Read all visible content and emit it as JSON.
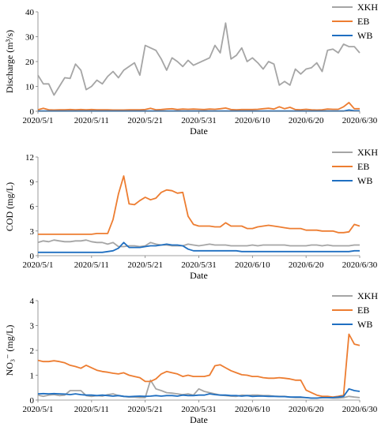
{
  "chart_data": [
    {
      "type": "line",
      "title": "",
      "xlabel": "Date",
      "ylabel": "Discharge (m³/s)",
      "ylim": [
        0,
        40
      ],
      "yticks": [
        0,
        10,
        20,
        30,
        40
      ],
      "xtick_labels": [
        "2020/5/1",
        "2020/5/11",
        "2020/5/21",
        "2020/5/31",
        "2020/6/10",
        "2020/6/20",
        "2020/6/30"
      ],
      "x_range": [
        "2020/5/1",
        "2020/6/30"
      ],
      "legend_position": "top-right",
      "grid": false,
      "series": [
        {
          "name": "XKH",
          "color": "#a5a5a5",
          "values": [
            14.5,
            11.0,
            11.0,
            6.5,
            10.0,
            13.5,
            13.2,
            19.0,
            16.5,
            8.7,
            10.0,
            12.5,
            11.0,
            14.0,
            16.0,
            13.5,
            16.5,
            18.0,
            19.5,
            14.5,
            26.5,
            25.5,
            24.5,
            21.0,
            16.5,
            21.5,
            20.0,
            18.0,
            20.5,
            18.5,
            19.5,
            20.5,
            21.5,
            26.5,
            23.5,
            35.5,
            21.0,
            22.5,
            25.5,
            20.0,
            21.5,
            19.5,
            17.0,
            20.0,
            19.0,
            10.5,
            12.0,
            10.5,
            17.0,
            15.0,
            17.0,
            17.5,
            19.5,
            16.0,
            24.5,
            25.0,
            23.5,
            27.0,
            26.0,
            26.0,
            23.5
          ]
        },
        {
          "name": "EB",
          "color": "#ed7d31",
          "values": [
            0.6,
            1.2,
            0.6,
            0.5,
            0.6,
            0.6,
            0.7,
            0.6,
            0.7,
            0.6,
            0.7,
            0.6,
            0.6,
            0.6,
            0.5,
            0.5,
            0.5,
            0.6,
            0.6,
            0.6,
            0.7,
            1.2,
            0.6,
            0.7,
            0.9,
            1.0,
            0.7,
            0.9,
            0.8,
            0.9,
            0.8,
            0.7,
            0.9,
            0.8,
            1.0,
            1.3,
            0.7,
            0.6,
            0.7,
            0.7,
            0.7,
            0.8,
            1.0,
            1.2,
            0.9,
            1.8,
            1.0,
            1.6,
            0.7,
            0.6,
            0.8,
            0.6,
            0.5,
            0.6,
            0.9,
            0.8,
            0.8,
            1.8,
            3.5,
            1.0,
            1.0
          ]
        },
        {
          "name": "WB",
          "color": "#1f6fc1",
          "values": [
            0.1,
            0.1,
            0.1,
            0.1,
            0.1,
            0.1,
            0.1,
            0.1,
            0.1,
            0.1,
            0.1,
            0.1,
            0.1,
            0.1,
            0.1,
            0.1,
            0.1,
            0.1,
            0.1,
            0.1,
            0.1,
            0.1,
            0.1,
            0.1,
            0.1,
            0.1,
            0.1,
            0.1,
            0.1,
            0.1,
            0.1,
            0.1,
            0.1,
            0.1,
            0.1,
            0.1,
            0.1,
            0.1,
            0.1,
            0.1,
            0.1,
            0.1,
            0.1,
            0.1,
            0.1,
            0.1,
            0.1,
            0.1,
            0.1,
            0.1,
            0.1,
            0.1,
            0.1,
            0.1,
            0.1,
            0.1,
            0.1,
            0.1,
            0.5,
            0.2,
            0.2
          ]
        }
      ]
    },
    {
      "type": "line",
      "title": "",
      "xlabel": "Date",
      "ylabel": "COD (mg/L)",
      "ylim": [
        0,
        12
      ],
      "yticks": [
        0,
        3,
        6,
        9,
        12
      ],
      "xtick_labels": [
        "2020/5/1",
        "2020/5/11",
        "2020/5/21",
        "2020/5/31",
        "2020/6/10",
        "2020/6/20",
        "2020/6/30"
      ],
      "x_range": [
        "2020/5/1",
        "2020/6/30"
      ],
      "legend_position": "top-right",
      "grid": false,
      "series": [
        {
          "name": "XKH",
          "color": "#a5a5a5",
          "values": [
            1.6,
            1.8,
            1.7,
            1.9,
            1.8,
            1.7,
            1.7,
            1.8,
            1.8,
            1.9,
            1.7,
            1.6,
            1.6,
            1.4,
            1.6,
            1.1,
            1.1,
            1.2,
            1.2,
            1.1,
            1.2,
            1.6,
            1.4,
            1.3,
            1.3,
            1.2,
            1.2,
            1.2,
            1.4,
            1.3,
            1.2,
            1.3,
            1.4,
            1.3,
            1.3,
            1.3,
            1.2,
            1.2,
            1.2,
            1.2,
            1.3,
            1.2,
            1.3,
            1.3,
            1.3,
            1.3,
            1.3,
            1.2,
            1.2,
            1.2,
            1.2,
            1.3,
            1.3,
            1.2,
            1.3,
            1.2,
            1.2,
            1.2,
            1.2,
            1.3,
            1.3
          ]
        },
        {
          "name": "EB",
          "color": "#ed7d31",
          "values": [
            2.6,
            2.6,
            2.6,
            2.6,
            2.6,
            2.6,
            2.6,
            2.6,
            2.6,
            2.6,
            2.6,
            2.7,
            2.7,
            2.7,
            4.4,
            7.5,
            9.7,
            6.3,
            6.2,
            6.7,
            7.1,
            6.8,
            7.0,
            7.7,
            8.0,
            7.9,
            7.6,
            7.7,
            4.8,
            3.8,
            3.6,
            3.6,
            3.6,
            3.5,
            3.5,
            4.0,
            3.6,
            3.6,
            3.6,
            3.3,
            3.3,
            3.5,
            3.6,
            3.7,
            3.6,
            3.5,
            3.4,
            3.3,
            3.3,
            3.3,
            3.1,
            3.1,
            3.1,
            3.0,
            3.0,
            3.0,
            2.8,
            2.8,
            2.9,
            3.8,
            3.6
          ]
        },
        {
          "name": "WB",
          "color": "#1f6fc1",
          "values": [
            0.4,
            0.4,
            0.4,
            0.4,
            0.4,
            0.4,
            0.4,
            0.4,
            0.4,
            0.4,
            0.4,
            0.4,
            0.4,
            0.5,
            0.6,
            0.9,
            1.6,
            1.0,
            1.0,
            1.0,
            1.1,
            1.2,
            1.2,
            1.3,
            1.4,
            1.3,
            1.3,
            1.2,
            0.8,
            0.6,
            0.6,
            0.6,
            0.6,
            0.6,
            0.6,
            0.6,
            0.6,
            0.6,
            0.5,
            0.5,
            0.5,
            0.5,
            0.5,
            0.5,
            0.5,
            0.5,
            0.5,
            0.5,
            0.5,
            0.5,
            0.5,
            0.5,
            0.5,
            0.5,
            0.5,
            0.5,
            0.5,
            0.5,
            0.5,
            0.6,
            0.6
          ]
        }
      ]
    },
    {
      "type": "line",
      "title": "",
      "xlabel": "Date",
      "ylabel": "NO₃⁻ (mg/L)",
      "ylim": [
        0,
        4
      ],
      "yticks": [
        0,
        1,
        2,
        3,
        4
      ],
      "xtick_labels": [
        "2020/5/1",
        "2020/5/11",
        "2020/5/21",
        "2020/5/31",
        "2020/6/10",
        "2020/6/20",
        "2020/6/30"
      ],
      "x_range": [
        "2020/5/1",
        "2020/6/30"
      ],
      "legend_position": "top-right",
      "grid": false,
      "series": [
        {
          "name": "XKH",
          "color": "#a5a5a5",
          "values": [
            0.2,
            0.15,
            0.2,
            0.22,
            0.18,
            0.2,
            0.38,
            0.38,
            0.38,
            0.18,
            0.15,
            0.18,
            0.16,
            0.22,
            0.25,
            0.18,
            0.15,
            0.12,
            0.12,
            0.1,
            0.1,
            0.8,
            0.45,
            0.38,
            0.3,
            0.28,
            0.25,
            0.22,
            0.25,
            0.2,
            0.45,
            0.35,
            0.3,
            0.25,
            0.2,
            0.18,
            0.16,
            0.15,
            0.2,
            0.18,
            0.2,
            0.2,
            0.18,
            0.18,
            0.16,
            0.15,
            0.15,
            0.12,
            0.1,
            0.1,
            0.1,
            0.08,
            0.08,
            0.1,
            0.1,
            0.08,
            0.08,
            0.1,
            0.15,
            0.12,
            0.1
          ]
        },
        {
          "name": "EB",
          "color": "#ed7d31",
          "values": [
            1.6,
            1.55,
            1.55,
            1.58,
            1.55,
            1.5,
            1.4,
            1.35,
            1.28,
            1.4,
            1.3,
            1.2,
            1.15,
            1.12,
            1.08,
            1.05,
            1.1,
            1.0,
            0.95,
            0.9,
            0.75,
            0.75,
            0.85,
            1.05,
            1.15,
            1.1,
            1.05,
            0.95,
            1.0,
            0.95,
            0.95,
            0.95,
            1.0,
            1.38,
            1.42,
            1.3,
            1.18,
            1.1,
            1.02,
            1.0,
            0.95,
            0.95,
            0.9,
            0.88,
            0.88,
            0.9,
            0.88,
            0.85,
            0.8,
            0.8,
            0.4,
            0.3,
            0.2,
            0.15,
            0.15,
            0.12,
            0.15,
            0.2,
            2.65,
            2.25,
            2.2
          ]
        },
        {
          "name": "WB",
          "color": "#1f6fc1",
          "values": [
            0.25,
            0.26,
            0.25,
            0.26,
            0.25,
            0.24,
            0.22,
            0.25,
            0.22,
            0.2,
            0.2,
            0.18,
            0.2,
            0.18,
            0.16,
            0.18,
            0.15,
            0.14,
            0.15,
            0.16,
            0.15,
            0.16,
            0.18,
            0.16,
            0.18,
            0.18,
            0.16,
            0.2,
            0.18,
            0.18,
            0.2,
            0.2,
            0.25,
            0.22,
            0.2,
            0.2,
            0.18,
            0.18,
            0.16,
            0.18,
            0.15,
            0.16,
            0.16,
            0.15,
            0.15,
            0.14,
            0.14,
            0.12,
            0.12,
            0.12,
            0.1,
            0.08,
            0.08,
            0.1,
            0.1,
            0.1,
            0.12,
            0.15,
            0.45,
            0.38,
            0.35
          ]
        }
      ]
    }
  ]
}
